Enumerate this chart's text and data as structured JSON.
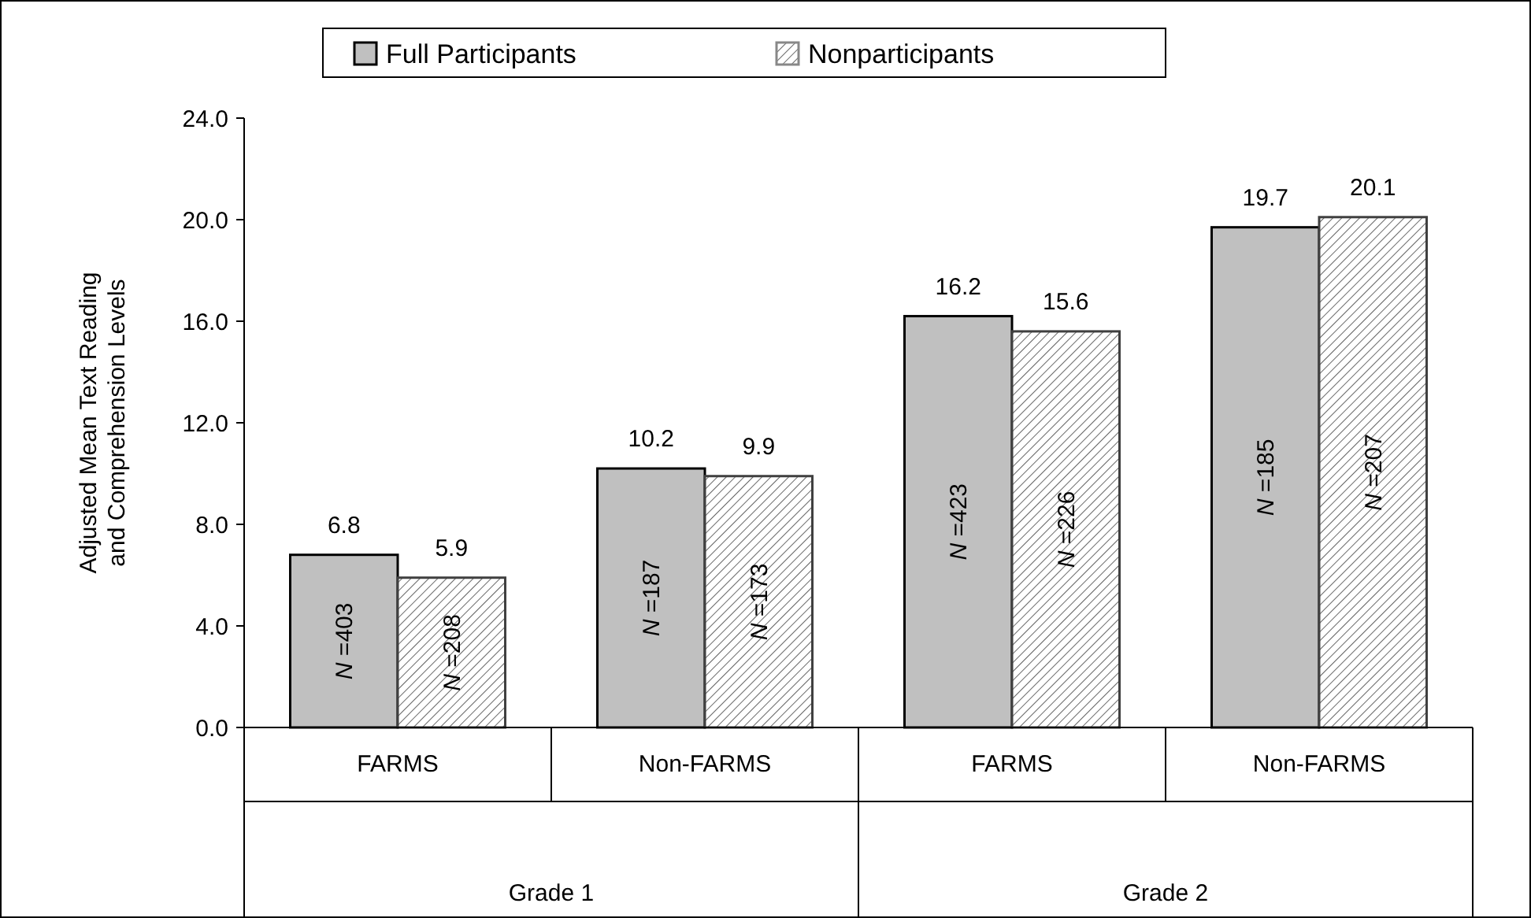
{
  "chart_data": {
    "type": "bar",
    "ylabel": "Adjusted Mean Text Reading\nand Comprehension Levels",
    "categories": [
      "FARMS",
      "Non-FARMS",
      "FARMS",
      "Non-FARMS"
    ],
    "series": [
      {
        "name": "Full Participants",
        "color": "#c0c0c0",
        "values": [
          6.8,
          10.2,
          16.2,
          19.7
        ]
      },
      {
        "name": "Nonparticipants",
        "color": "#404040",
        "values": [
          5.9,
          9.9,
          15.6,
          20.1
        ]
      }
    ],
    "ylim": [
      0,
      24
    ],
    "yticks": [
      {
        "value": 0,
        "label": "0.0"
      },
      {
        "value": 4,
        "label": "4.0"
      },
      {
        "value": 8,
        "label": "8.0"
      },
      {
        "value": 12,
        "label": "12.0"
      },
      {
        "value": 16,
        "label": "16.0"
      },
      {
        "value": 20,
        "label": "20.0"
      },
      {
        "value": 24,
        "label": "24.0"
      }
    ],
    "data_labels": true,
    "legend": "top",
    "grid": false,
    "annotations": [
      "N =403",
      "N =208",
      "N =187",
      "N =173",
      "N =423",
      "N =226",
      "N =185",
      "N =207",
      "Grade 1",
      "Grade 2"
    ]
  }
}
